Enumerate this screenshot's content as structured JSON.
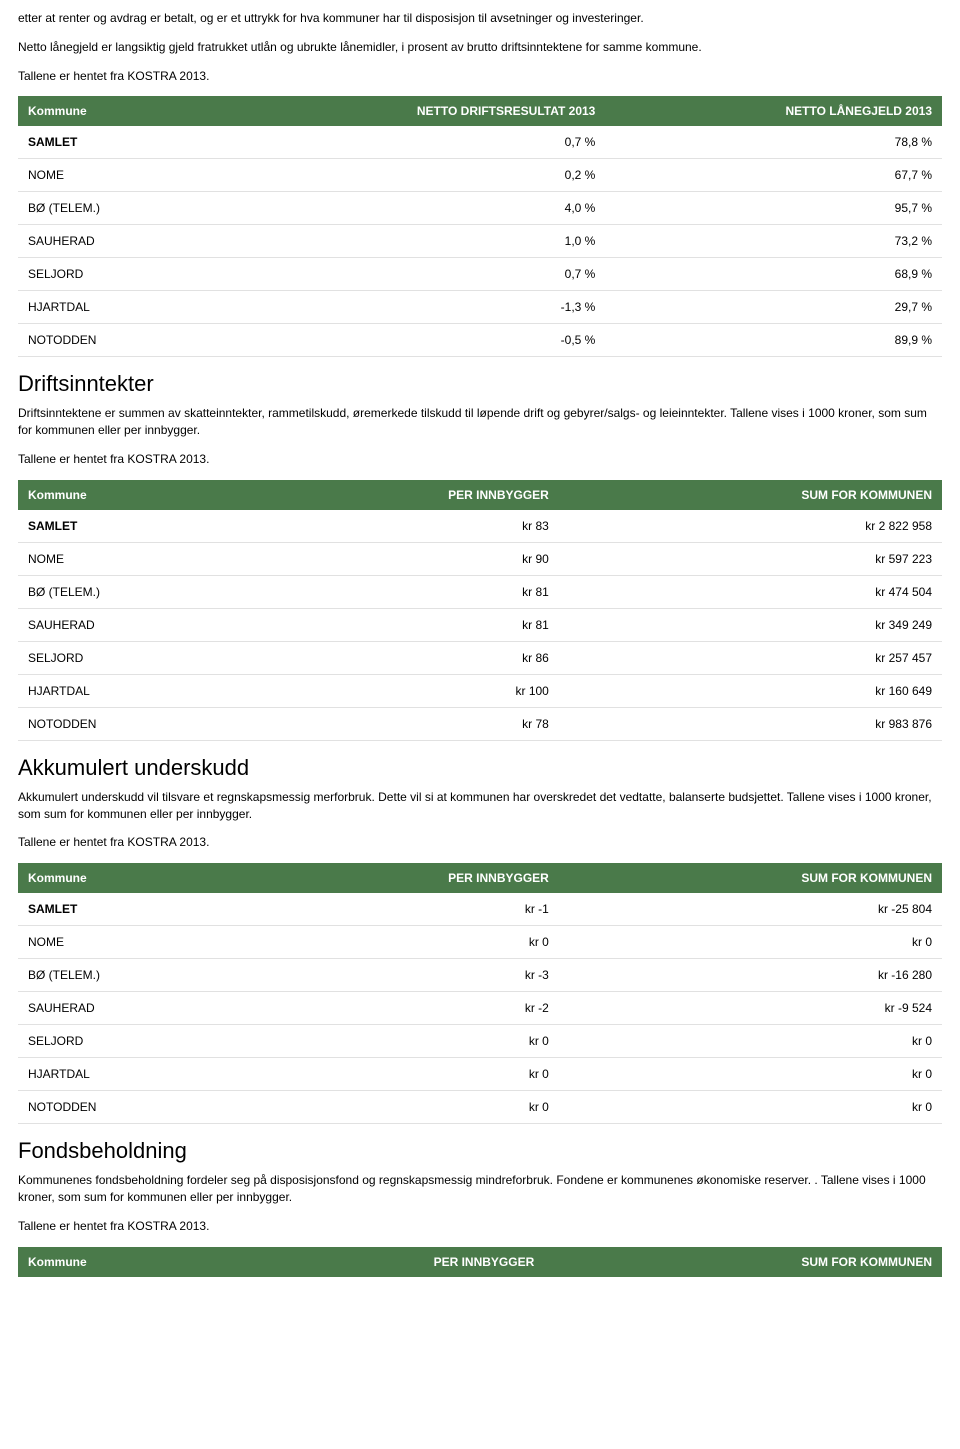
{
  "intro": {
    "p1": "etter at renter og avdrag er betalt, og er et uttrykk for hva kommuner har til disposisjon til avsetninger og investeringer.",
    "p2": "Netto lånegjeld er langsiktig gjeld fratrukket utlån og ubrukte lånemidler, i prosent av brutto driftsinntektene for samme kommune.",
    "p3": "Tallene er hentet fra KOSTRA 2013."
  },
  "okonomi": {
    "headers": [
      "Kommune",
      "NETTO DRIFTSRESULTAT 2013",
      "NETTO LÅNEGJELD 2013"
    ],
    "rows": [
      {
        "k": "SAMLET",
        "a": "0,7 %",
        "b": "78,8 %",
        "samlet": true
      },
      {
        "k": "NOME",
        "a": "0,2 %",
        "b": "67,7 %"
      },
      {
        "k": "BØ (TELEM.)",
        "a": "4,0 %",
        "b": "95,7 %"
      },
      {
        "k": "SAUHERAD",
        "a": "1,0 %",
        "b": "73,2 %"
      },
      {
        "k": "SELJORD",
        "a": "0,7 %",
        "b": "68,9 %"
      },
      {
        "k": "HJARTDAL",
        "a": "-1,3 %",
        "b": "29,7 %"
      },
      {
        "k": "NOTODDEN",
        "a": "-0,5 %",
        "b": "89,9 %"
      }
    ]
  },
  "drift": {
    "title": "Driftsinntekter",
    "p1": "Driftsinntektene er summen av skatteinntekter, rammetilskudd, øremerkede tilskudd til løpende drift og gebyrer/salgs- og leieinntekter. Tallene vises i 1000 kroner, som sum for kommunen eller per innbygger.",
    "p2": "Tallene er hentet fra KOSTRA 2013.",
    "headers": [
      "Kommune",
      "PER INNBYGGER",
      "SUM FOR KOMMUNEN"
    ],
    "rows": [
      {
        "k": "SAMLET",
        "a": "kr 83",
        "b": "kr 2 822 958",
        "samlet": true
      },
      {
        "k": "NOME",
        "a": "kr 90",
        "b": "kr 597 223"
      },
      {
        "k": "BØ (TELEM.)",
        "a": "kr 81",
        "b": "kr 474 504"
      },
      {
        "k": "SAUHERAD",
        "a": "kr 81",
        "b": "kr 349 249"
      },
      {
        "k": "SELJORD",
        "a": "kr 86",
        "b": "kr 257 457"
      },
      {
        "k": "HJARTDAL",
        "a": "kr 100",
        "b": "kr 160 649"
      },
      {
        "k": "NOTODDEN",
        "a": "kr 78",
        "b": "kr 983 876"
      }
    ]
  },
  "akk": {
    "title": "Akkumulert underskudd",
    "p1": "Akkumulert underskudd vil tilsvare et regnskapsmessig merforbruk. Dette vil si at kommunen har overskredet det vedtatte, balanserte budsjettet. Tallene vises i 1000 kroner, som sum for kommunen eller per innbygger.",
    "p2": "Tallene er hentet fra KOSTRA 2013.",
    "headers": [
      "Kommune",
      "PER INNBYGGER",
      "SUM FOR KOMMUNEN"
    ],
    "rows": [
      {
        "k": "SAMLET",
        "a": "kr -1",
        "b": "kr -25 804",
        "samlet": true
      },
      {
        "k": "NOME",
        "a": "kr 0",
        "b": "kr 0"
      },
      {
        "k": "BØ (TELEM.)",
        "a": "kr -3",
        "b": "kr -16 280"
      },
      {
        "k": "SAUHERAD",
        "a": "kr -2",
        "b": "kr -9 524"
      },
      {
        "k": "SELJORD",
        "a": "kr 0",
        "b": "kr 0"
      },
      {
        "k": "HJARTDAL",
        "a": "kr 0",
        "b": "kr 0"
      },
      {
        "k": "NOTODDEN",
        "a": "kr 0",
        "b": "kr 0"
      }
    ]
  },
  "fond": {
    "title": "Fondsbeholdning",
    "p1": "Kommunenes fondsbeholdning fordeler seg på disposisjonsfond og regnskapsmessig mindreforbruk. Fondene er kommunenes økonomiske reserver. . Tallene vises i 1000 kroner, som sum for kommunen eller per innbygger.",
    "p2": "Tallene er hentet fra KOSTRA 2013.",
    "headers": [
      "Kommune",
      "PER INNBYGGER",
      "SUM FOR KOMMUNEN"
    ]
  },
  "colors": {
    "header_bg": "#4a7a4a",
    "header_fg": "#ffffff",
    "row_border": "#e1e1e1",
    "page_bg": "#ffffff",
    "text": "#000000"
  }
}
